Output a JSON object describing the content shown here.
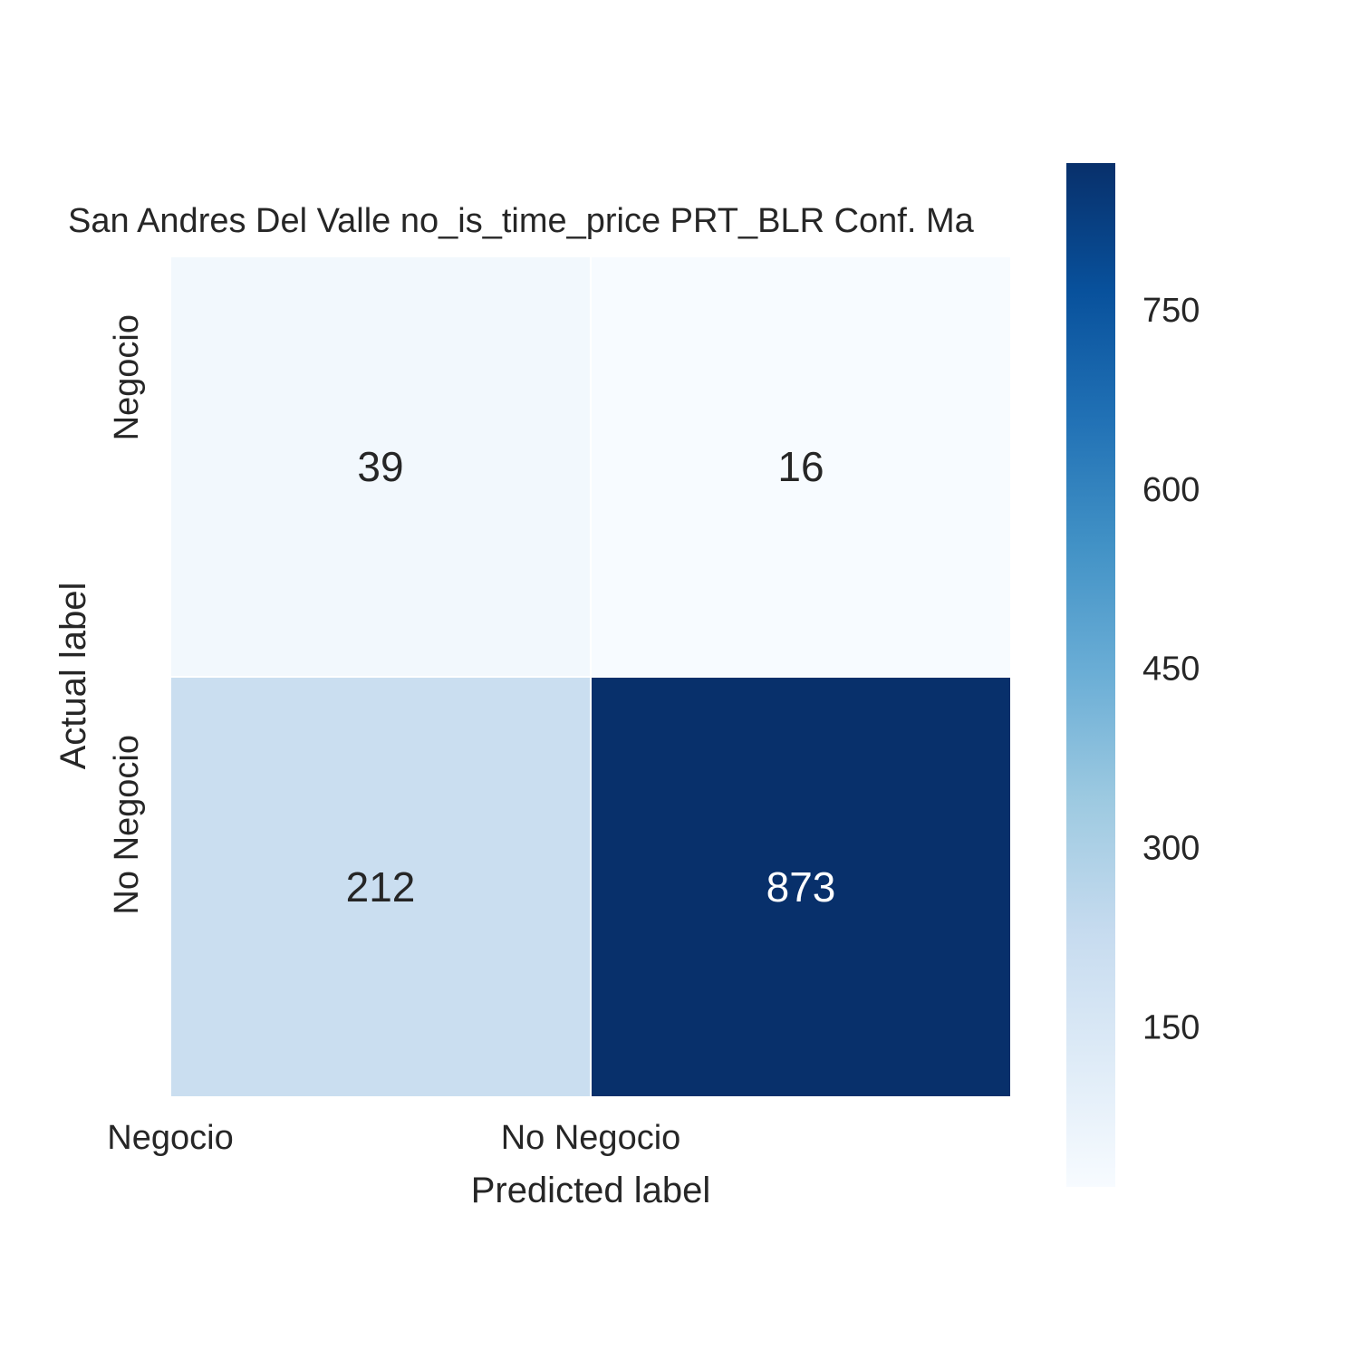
{
  "chart_data": {
    "type": "heatmap",
    "title": "San Andres Del Valle no_is_time_price PRT_BLR Conf. Ma",
    "xlabel": "Predicted label",
    "ylabel": "Actual label",
    "x_categories": [
      "Negocio",
      "No Negocio"
    ],
    "y_categories": [
      "Negocio",
      "No Negocio"
    ],
    "values": [
      [
        39,
        16
      ],
      [
        212,
        873
      ]
    ],
    "colormap": "Blues",
    "value_range": [
      16,
      873
    ],
    "colorbar_ticks": [
      150,
      300,
      450,
      600,
      750
    ],
    "colorbar_tick_labels": [
      "150",
      "300",
      "450",
      "600",
      "750"
    ],
    "annotation_colors": {
      "light_cell": "#262626",
      "dark_cell": "#ffffff"
    },
    "cell_border_color": "#ffffff"
  }
}
